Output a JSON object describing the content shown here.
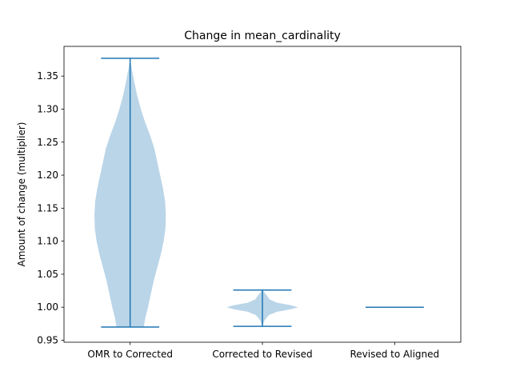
{
  "chart_data": {
    "type": "violin",
    "title": "Change in mean_cardinality",
    "xlabel": "",
    "ylabel": "Amount of change (multiplier)",
    "ylim": [
      0.947,
      1.395
    ],
    "yticks": [
      "0.95",
      "1.00",
      "1.05",
      "1.10",
      "1.15",
      "1.20",
      "1.25",
      "1.30",
      "1.35"
    ],
    "ytick_values": [
      0.95,
      1.0,
      1.05,
      1.1,
      1.15,
      1.2,
      1.25,
      1.3,
      1.35
    ],
    "categories": [
      "OMR to Corrected",
      "Corrected to Revised",
      "Revised to Aligned"
    ],
    "grid": false,
    "legend": "none",
    "colors": {
      "body": "#bad5e8",
      "lines": "#1f77b4"
    },
    "series": [
      {
        "min": 0.97,
        "max": 1.377,
        "density": [
          [
            0.97,
            0.38
          ],
          [
            0.985,
            0.43
          ],
          [
            1.0,
            0.5
          ],
          [
            1.02,
            0.58
          ],
          [
            1.04,
            0.66
          ],
          [
            1.06,
            0.76
          ],
          [
            1.08,
            0.86
          ],
          [
            1.1,
            0.94
          ],
          [
            1.12,
            0.99
          ],
          [
            1.14,
            1.0
          ],
          [
            1.16,
            0.98
          ],
          [
            1.18,
            0.92
          ],
          [
            1.2,
            0.84
          ],
          [
            1.22,
            0.76
          ],
          [
            1.24,
            0.68
          ],
          [
            1.26,
            0.56
          ],
          [
            1.28,
            0.42
          ],
          [
            1.3,
            0.3
          ],
          [
            1.32,
            0.2
          ],
          [
            1.34,
            0.12
          ],
          [
            1.36,
            0.05
          ],
          [
            1.377,
            0.0
          ]
        ]
      },
      {
        "min": 0.971,
        "max": 1.026,
        "density": [
          [
            0.971,
            0.0
          ],
          [
            0.98,
            0.06
          ],
          [
            0.988,
            0.18
          ],
          [
            0.993,
            0.4
          ],
          [
            0.997,
            0.8
          ],
          [
            1.0,
            1.0
          ],
          [
            1.003,
            0.8
          ],
          [
            1.007,
            0.4
          ],
          [
            1.012,
            0.2
          ],
          [
            1.018,
            0.12
          ],
          [
            1.022,
            0.06
          ],
          [
            1.026,
            0.0
          ]
        ]
      },
      {
        "min": 1.0,
        "max": 1.0,
        "density": []
      }
    ]
  }
}
